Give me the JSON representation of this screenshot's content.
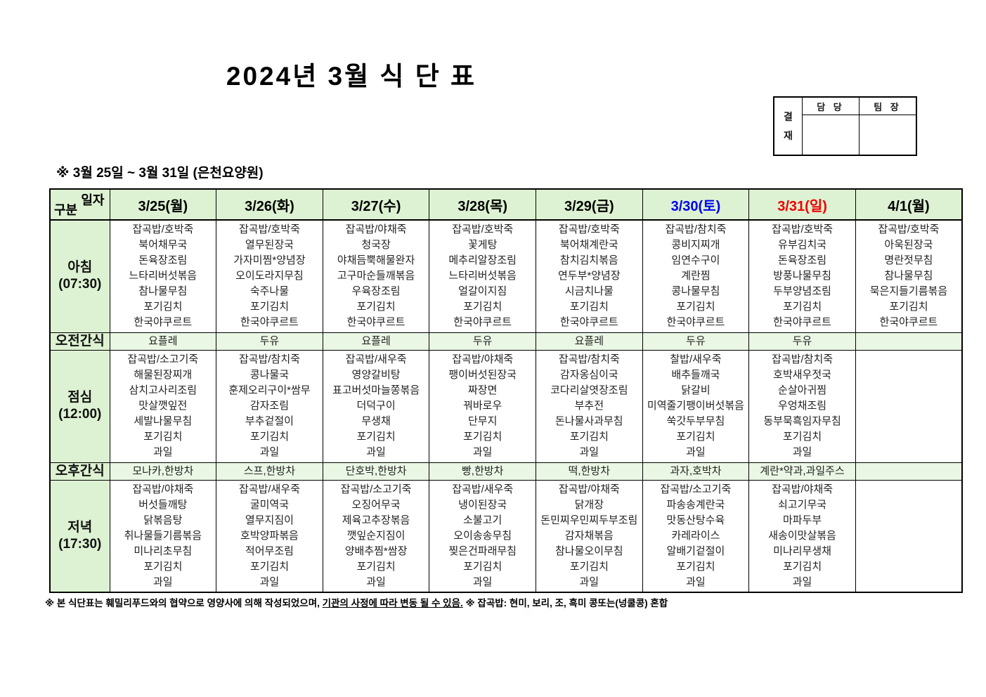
{
  "title": "2024년 3월 식 단 표",
  "subtitle": "※ 3월 25일 ~ 3월 31일 (은천요양원)",
  "approval": {
    "side_label": "결재",
    "columns": [
      "담 당",
      "팀 장"
    ]
  },
  "corner": {
    "top": "일자",
    "bottom": "구분"
  },
  "colors": {
    "header_green": "#ddf2d2",
    "snack_green": "#ebf7e5",
    "saturday_blue": "#0000f0",
    "sunday_red": "#f00000"
  },
  "columns": [
    {
      "label": "3/25(월)",
      "color": "#000000"
    },
    {
      "label": "3/26(화)",
      "color": "#000000"
    },
    {
      "label": "3/27(수)",
      "color": "#000000"
    },
    {
      "label": "3/28(목)",
      "color": "#000000"
    },
    {
      "label": "3/29(금)",
      "color": "#000000"
    },
    {
      "label": "3/30(토)",
      "color": "#0000f0"
    },
    {
      "label": "3/31(일)",
      "color": "#f00000"
    },
    {
      "label": "4/1(월)",
      "color": "#000000"
    }
  ],
  "rows": [
    {
      "kind": "meal",
      "label": "아침",
      "time": "(07:30)",
      "cells": [
        [
          "잡곡밥/호박죽",
          "북어채무국",
          "돈육장조림",
          "느타리버섯볶음",
          "참나물무침",
          "포기김치",
          "한국야쿠르트"
        ],
        [
          "잡곡밥/호박죽",
          "열무된장국",
          "가자미찜*양념장",
          "오이도라지무침",
          "숙주나물",
          "포기김치",
          "한국야쿠르트"
        ],
        [
          "잡곡밥/야채죽",
          "청국장",
          "야채듬뿍해물완자",
          "고구마순들깨볶음",
          "우육장조림",
          "포기김치",
          "한국야쿠르트"
        ],
        [
          "잡곡밥/호박죽",
          "꽃게탕",
          "메추리알장조림",
          "느타리버섯볶음",
          "얼갈이지짐",
          "포기김치",
          "한국야쿠르트"
        ],
        [
          "잡곡밥/호박죽",
          "북어채계란국",
          "참치김치볶음",
          "연두부*양념장",
          "시금치나물",
          "포기김치",
          "한국야쿠르트"
        ],
        [
          "잡곡밥/참치죽",
          "콩비지찌개",
          "임연수구이",
          "계란찜",
          "콩나물무침",
          "포기김치",
          "한국야쿠르트"
        ],
        [
          "잡곡밥/호박죽",
          "유부김치국",
          "돈육장조림",
          "방풍나물무침",
          "두부양념조림",
          "포기김치",
          "한국야쿠르트"
        ],
        [
          "잡곡밥/호박죽",
          "아욱된장국",
          "명란젓무침",
          "참나물무침",
          "묵은지들기름볶음",
          "포기김치",
          "한국야쿠르트"
        ]
      ]
    },
    {
      "kind": "snack",
      "label": "오전간식",
      "cells": [
        "요플레",
        "두유",
        "요플레",
        "두유",
        "요플레",
        "두유",
        "두유",
        ""
      ]
    },
    {
      "kind": "meal",
      "label": "점심",
      "time": "(12:00)",
      "cells": [
        [
          "잡곡밥/소고기죽",
          "해물된장찌개",
          "삼치고사리조림",
          "맛살깻잎전",
          "세발나물무침",
          "포기김치",
          "과일"
        ],
        [
          "잡곡밥/참치죽",
          "콩나물국",
          "훈제오리구이*쌈무",
          "감자조림",
          "부추겉절이",
          "포기김치",
          "과일"
        ],
        [
          "잡곡밥/새우죽",
          "영양갈비탕",
          "표고버섯마늘쫑볶음",
          "더덕구이",
          "무생채",
          "포기김치",
          "과일"
        ],
        [
          "잡곡밥/야채죽",
          "팽이버섯된장국",
          "짜장면",
          "꿔바로우",
          "단무지",
          "포기김치",
          "과일"
        ],
        [
          "잡곡밥/참치죽",
          "감자옹심이국",
          "코다리살엿장조림",
          "부추전",
          "돈나물사과무침",
          "포기김치",
          "과일"
        ],
        [
          "찰밥/새우죽",
          "배추들깨국",
          "닭갈비",
          "미역줄기팽이버섯볶음",
          "쑥갓두부무침",
          "포기김치",
          "과일"
        ],
        [
          "잡곡밥/참치죽",
          "호박새우젓국",
          "순살아귀찜",
          "우엉채조림",
          "동부묵흑임자무침",
          "포기김치",
          "과일"
        ],
        []
      ]
    },
    {
      "kind": "snack",
      "label": "오후간식",
      "cells": [
        "모나카,한방차",
        "스프,한방차",
        "단호박,한방차",
        "빵,한방차",
        "떡,한방차",
        "과자,호박차",
        "계란*약과,과일주스",
        ""
      ]
    },
    {
      "kind": "meal",
      "label": "저녁",
      "time": "(17:30)",
      "cells": [
        [
          "잡곡밥/야채죽",
          "버섯들깨탕",
          "닭볶음탕",
          "취나물들기름볶음",
          "미나리초무침",
          "포기김치",
          "과일"
        ],
        [
          "잡곡밥/새우죽",
          "굴미역국",
          "열무지짐이",
          "호박양파볶음",
          "적어무조림",
          "포기김치",
          "과일"
        ],
        [
          "잡곡밥/소고기죽",
          "오징어무국",
          "제육고추장볶음",
          "깻잎순지짐이",
          "양배추찜*쌈장",
          "포기김치",
          "과일"
        ],
        [
          "잡곡밥/새우죽",
          "냉이된장국",
          "소불고기",
          "오이송송무침",
          "찢은건파래무침",
          "포기김치",
          "과일"
        ],
        [
          "잡곡밥/야채죽",
          "닭개장",
          "돈민찌우민찌두부조림",
          "감자채볶음",
          "참나물오이무침",
          "포기김치",
          "과일"
        ],
        [
          "잡곡밥/소고기죽",
          "파송송계란국",
          "맛동산탕수육",
          "카레라이스",
          "알배기겉절이",
          "포기김치",
          "과일"
        ],
        [
          "잡곡밥/야채죽",
          "쇠고기무국",
          "마파두부",
          "새송이맛살볶음",
          "미나리무생채",
          "포기김치",
          "과일"
        ],
        []
      ]
    }
  ],
  "footnote": {
    "pre": "※ 본 식단표는 훼밀리푸드와의 협약으로 영양사에 의해 작성되었으며, ",
    "underlined": "기관의 사정에 따라 변동 될 수 있음.",
    "post": " ※ 잡곡밥: 현미, 보리, 조, 흑미 콩또는(넝쿨콩) 혼합"
  }
}
